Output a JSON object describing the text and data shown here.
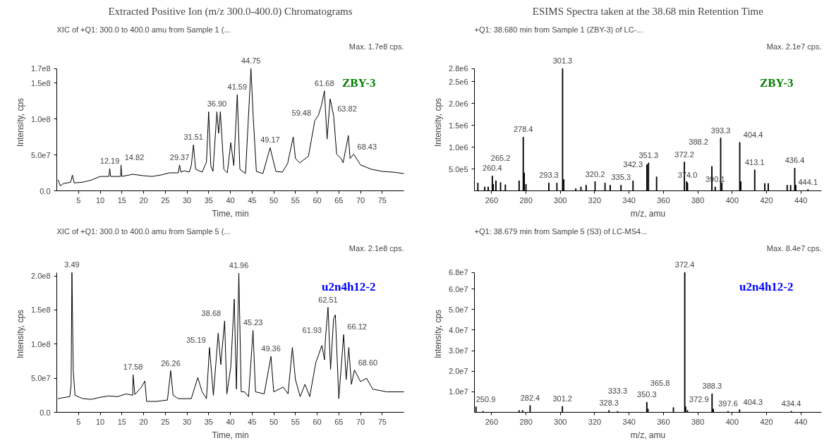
{
  "chart_data": [
    {
      "type": "line",
      "title": "Extracted Positive Ion (m/z 300.0-400.0) Chromatograms",
      "subtitle": "XIC of +Q1: 300.0 to 400.0 amu from Sample 1 (...",
      "xlabel": "Time, min",
      "ylabel": "Intensity, cps",
      "xlim": [
        0,
        80
      ],
      "ylim": [
        0,
        170000000
      ],
      "xticks": [
        5,
        10,
        15,
        20,
        25,
        30,
        35,
        40,
        45,
        50,
        55,
        60,
        65,
        70,
        75
      ],
      "yticks": [
        {
          "value": 0,
          "label": "0.0"
        },
        {
          "value": 50000000,
          "label": "5.0e7"
        },
        {
          "value": 100000000,
          "label": "1.0e8"
        },
        {
          "value": 150000000,
          "label": "1.5e8"
        },
        {
          "value": 170000000,
          "label": "1.7e8"
        }
      ],
      "x": [
        0.3,
        0.8,
        1.5,
        3.2,
        3.6,
        4.0,
        6,
        8,
        10,
        12,
        12.2,
        12.4,
        14.7,
        14.8,
        15,
        17.5,
        20,
        22,
        24,
        26,
        28,
        28.3,
        28.6,
        29.4,
        30.5,
        31.0,
        31.5,
        32,
        33.5,
        34.5,
        35.0,
        35.5,
        36,
        36.9,
        37.3,
        37.7,
        38.5,
        39.3,
        40.1,
        40.8,
        41.6,
        42.2,
        43.5,
        44.75,
        45.3,
        46,
        47.5,
        49.17,
        50.5,
        52,
        53.2,
        54.5,
        55,
        56,
        58,
        59.48,
        60.3,
        61.0,
        61.68,
        62.3,
        63,
        63.82,
        64.5,
        65.5,
        66,
        67.2,
        67.6,
        68.43,
        70,
        72.5,
        75,
        77.5,
        80
      ],
      "series": [
        {
          "color": "#000000",
          "values": [
            15000000,
            7000000,
            10000000,
            12000000,
            22000000,
            11000000,
            12000000,
            15000000,
            20000000,
            20000000,
            31000000,
            20000000,
            20000000,
            36000000,
            20000000,
            23000000,
            21000000,
            20000000,
            22000000,
            25000000,
            25000000,
            36000000,
            26000000,
            28000000,
            26000000,
            35000000,
            64000000,
            30000000,
            26000000,
            40000000,
            110000000,
            35000000,
            27000000,
            110000000,
            80000000,
            110000000,
            30000000,
            25000000,
            67000000,
            35000000,
            134000000,
            30000000,
            24000000,
            170000000,
            100000000,
            27000000,
            24000000,
            60000000,
            27000000,
            26000000,
            38000000,
            75000000,
            45000000,
            39000000,
            48000000,
            98000000,
            105000000,
            119000000,
            139000000,
            72000000,
            128000000,
            104000000,
            51000000,
            45000000,
            39000000,
            77000000,
            45000000,
            51000000,
            36000000,
            30000000,
            27000000,
            26000000,
            24000000
          ]
        }
      ],
      "annotations": [
        "Max. 1.7e8 cps.",
        "ZBY-3",
        {
          "text": "12.19",
          "x": 12.2,
          "y": 31000000
        },
        {
          "text": "14.82",
          "x": 14.8,
          "y": 36000000
        },
        {
          "text": "29.37",
          "x": 28.3,
          "y": 36000000
        },
        {
          "text": "31.51",
          "x": 31.5,
          "y": 64000000
        },
        {
          "text": "36.90",
          "x": 36.9,
          "y": 110000000
        },
        {
          "text": "41.59",
          "x": 41.6,
          "y": 134000000
        },
        {
          "text": "44.75",
          "x": 44.75,
          "y": 170000000
        },
        {
          "text": "49.17",
          "x": 49.17,
          "y": 60000000
        },
        {
          "text": "59.48",
          "x": 59.48,
          "y": 98000000
        },
        {
          "text": "61.68",
          "x": 61.68,
          "y": 139000000
        },
        {
          "text": "63.82",
          "x": 63.82,
          "y": 104000000
        },
        {
          "text": "68.43",
          "x": 68.43,
          "y": 51000000
        }
      ]
    },
    {
      "type": "bar",
      "title": "ESIMS Spectra taken at the 38.68 min Retention Time",
      "subtitle": "+Q1: 38.680 min from Sample 1 (ZBY-3) of LC-...",
      "xlabel": "m/z, amu",
      "ylabel": "Intensity, cps",
      "xlim": [
        250,
        452
      ],
      "ylim": [
        0,
        2800000
      ],
      "xticks": [
        260,
        280,
        300,
        320,
        340,
        360,
        380,
        400,
        420,
        440
      ],
      "yticks": [
        {
          "value": 500000,
          "label": "5.0e5"
        },
        {
          "value": 1000000,
          "label": "1.0e6"
        },
        {
          "value": 1500000,
          "label": "1.5e6"
        },
        {
          "value": 2000000,
          "label": "2.0e6"
        },
        {
          "value": 2500000,
          "label": "2.5e6"
        },
        {
          "value": 2800000,
          "label": "2.8e6"
        }
      ],
      "x": [
        252,
        256,
        258,
        260.4,
        261,
        262.5,
        265.2,
        268,
        276,
        278.4,
        279,
        280,
        293.3,
        298,
        301.3,
        302,
        309,
        312,
        315,
        320.2,
        326,
        329,
        335.3,
        342.3,
        350.4,
        351.3,
        356,
        372.2,
        373.5,
        374.0,
        388.2,
        390.1,
        393.3,
        394,
        404.4,
        405,
        413.1,
        419,
        421,
        432,
        434,
        436.4,
        437,
        444.1
      ],
      "series": [
        {
          "color": "#000000",
          "values": [
            180000,
            90000,
            90000,
            340000,
            150000,
            230000,
            190000,
            140000,
            230000,
            1230000,
            410000,
            150000,
            180000,
            180000,
            2800000,
            260000,
            50000,
            90000,
            130000,
            210000,
            180000,
            130000,
            130000,
            230000,
            600000,
            640000,
            320000,
            660000,
            210000,
            180000,
            560000,
            90000,
            1210000,
            180000,
            1110000,
            210000,
            480000,
            170000,
            170000,
            130000,
            130000,
            520000,
            130000,
            30000
          ]
        }
      ],
      "annotations": [
        "Max. 2.1e7 cps.",
        "ZBY-3",
        {
          "text": "260.4",
          "x": 260.4,
          "y": 340000
        },
        {
          "text": "265.2",
          "x": 265.2,
          "y": 190000
        },
        {
          "text": "278.4",
          "x": 278.4,
          "y": 1230000
        },
        {
          "text": "293.3",
          "x": 293.3,
          "y": 180000
        },
        {
          "text": "301.3",
          "x": 301.3,
          "y": 2800000
        },
        {
          "text": "320.2",
          "x": 320.2,
          "y": 210000
        },
        {
          "text": "335.3",
          "x": 335.3,
          "y": 130000
        },
        {
          "text": "342.3",
          "x": 342.3,
          "y": 230000
        },
        {
          "text": "351.3",
          "x": 351.3,
          "y": 640000
        },
        {
          "text": "372.2",
          "x": 372.2,
          "y": 660000
        },
        {
          "text": "374.0",
          "x": 374.0,
          "y": 180000
        },
        {
          "text": "388.2",
          "x": 388.2,
          "y": 560000
        },
        {
          "text": "390.1",
          "x": 390.1,
          "y": 90000
        },
        {
          "text": "393.3",
          "x": 393.3,
          "y": 1210000
        },
        {
          "text": "404.4",
          "x": 404.4,
          "y": 1110000
        },
        {
          "text": "413.1",
          "x": 413.1,
          "y": 480000
        },
        {
          "text": "436.4",
          "x": 436.4,
          "y": 520000
        },
        {
          "text": "444.1",
          "x": 444.1,
          "y": 30000
        }
      ]
    },
    {
      "type": "line",
      "subtitle": "XIC of +Q1: 300.0 to 400.0 amu from Sample 5 (...",
      "xlabel": "Time, min",
      "ylabel": "Intensity, cps",
      "xlim": [
        0,
        80
      ],
      "ylim": [
        0,
        205000000
      ],
      "xticks": [
        5,
        10,
        15,
        20,
        25,
        30,
        35,
        40,
        45,
        50,
        55,
        60,
        65,
        70,
        75
      ],
      "yticks": [
        {
          "value": 0,
          "label": "0.0"
        },
        {
          "value": 50000000,
          "label": "5.0e7"
        },
        {
          "value": 100000000,
          "label": "1.0e8"
        },
        {
          "value": 150000000,
          "label": "1.5e8"
        },
        {
          "value": 200000000,
          "label": "2.0e8"
        }
      ],
      "x": [
        0.3,
        1,
        3.0,
        3.3,
        3.49,
        3.8,
        4.2,
        6,
        8,
        10,
        12,
        14,
        16,
        17.5,
        17.58,
        18,
        19.5,
        20.3,
        20.7,
        23,
        25.5,
        26.26,
        26.8,
        28,
        31,
        32.5,
        33.5,
        34.5,
        35.19,
        36.1,
        37.2,
        37.8,
        38.68,
        39.2,
        40.1,
        40.9,
        41.4,
        41.96,
        42.5,
        43.3,
        44.2,
        45.23,
        45.8,
        47.8,
        49.36,
        50,
        52.2,
        53.3,
        54.3,
        55,
        56.1,
        57.2,
        58.3,
        59.7,
        61.1,
        61.7,
        61.93,
        62.51,
        63.1,
        63.8,
        64.2,
        65,
        66.12,
        66.7,
        67.3,
        67.9,
        68.6,
        70,
        71.4,
        72.8,
        76.1,
        80
      ],
      "series": [
        {
          "color": "#000000",
          "values": [
            20000000,
            21000000,
            23000000,
            40000000,
            205000000,
            60000000,
            25000000,
            20000000,
            19000000,
            22000000,
            24000000,
            23000000,
            27000000,
            25000000,
            55000000,
            26000000,
            37000000,
            46000000,
            16000000,
            16000000,
            18000000,
            61000000,
            25000000,
            20000000,
            20000000,
            51000000,
            30000000,
            20000000,
            95000000,
            25000000,
            116000000,
            70000000,
            134000000,
            27000000,
            66000000,
            166000000,
            34000000,
            204000000,
            30000000,
            30000000,
            23000000,
            120000000,
            30000000,
            27000000,
            82000000,
            30000000,
            37000000,
            27000000,
            95000000,
            48000000,
            23000000,
            41000000,
            23000000,
            73000000,
            98000000,
            77000000,
            109000000,
            154000000,
            63000000,
            137000000,
            143000000,
            20000000,
            114000000,
            48000000,
            95000000,
            41000000,
            62000000,
            45000000,
            50000000,
            34000000,
            30000000,
            30000000
          ]
        }
      ],
      "annotations": [
        "Max. 2.1e8 cps.",
        "u2n4h12-2",
        {
          "text": "3.49",
          "x": 3.49,
          "y": 205000000
        },
        {
          "text": "17.58",
          "x": 17.58,
          "y": 55000000
        },
        {
          "text": "26.26",
          "x": 26.26,
          "y": 61000000
        },
        {
          "text": "35.19",
          "x": 35.19,
          "y": 95000000
        },
        {
          "text": "38.68",
          "x": 38.68,
          "y": 134000000
        },
        {
          "text": "41.96",
          "x": 41.96,
          "y": 204000000
        },
        {
          "text": "45.23",
          "x": 45.23,
          "y": 120000000
        },
        {
          "text": "49.36",
          "x": 49.36,
          "y": 82000000
        },
        {
          "text": "61.93",
          "x": 61.93,
          "y": 109000000
        },
        {
          "text": "62.51",
          "x": 62.51,
          "y": 154000000
        },
        {
          "text": "66.12",
          "x": 66.12,
          "y": 114000000
        },
        {
          "text": "68.60",
          "x": 68.6,
          "y": 62000000
        }
      ]
    },
    {
      "type": "bar",
      "subtitle": "+Q1: 38.679 min from Sample 5 (S3) of LC-MS4...",
      "xlabel": "m/z, amu",
      "ylabel": "Intensity, cps",
      "xlim": [
        250,
        452
      ],
      "ylim": [
        0,
        68000000
      ],
      "xticks": [
        260,
        280,
        300,
        320,
        340,
        360,
        380,
        400,
        420,
        440
      ],
      "yticks": [
        {
          "value": 10000000,
          "label": "1.0e7"
        },
        {
          "value": 20000000,
          "label": "2.0e7"
        },
        {
          "value": 30000000,
          "label": "3.0e7"
        },
        {
          "value": 40000000,
          "label": "4.0e7"
        },
        {
          "value": 50000000,
          "label": "5.0e7"
        },
        {
          "value": 60000000,
          "label": "6.0e7"
        },
        {
          "value": 68000000,
          "label": "6.8e7"
        }
      ],
      "x": [
        250.9,
        255,
        276,
        278,
        282.4,
        301.2,
        328.3,
        333.3,
        350.3,
        351,
        365.8,
        372.4,
        372.9,
        374,
        388.3,
        389,
        397.6,
        404.3,
        434.4
      ],
      "series": [
        {
          "color": "#000000",
          "values": [
            2700000,
            500000,
            900000,
            900000,
            3300000,
            2900000,
            900000,
            500000,
            4900000,
            1600000,
            2300000,
            68000000,
            2700000,
            900000,
            9000000,
            1600000,
            500000,
            1300000,
            500000
          ]
        }
      ],
      "annotations": [
        "Max. 8.4e7 cps.",
        "u2n4h12-2",
        {
          "text": "250.9",
          "x": 250.9,
          "y": 2700000
        },
        {
          "text": "282.4",
          "x": 282.4,
          "y": 3300000
        },
        {
          "text": "301.2",
          "x": 301.2,
          "y": 2900000
        },
        {
          "text": "328.3",
          "x": 328.3,
          "y": 900000
        },
        {
          "text": "333.3",
          "x": 333.3,
          "y": 500000
        },
        {
          "text": "350.3",
          "x": 350.3,
          "y": 4900000
        },
        {
          "text": "365.8",
          "x": 365.8,
          "y": 2300000
        },
        {
          "text": "372.4",
          "x": 372.4,
          "y": 68000000
        },
        {
          "text": "372.9",
          "x": 372.9,
          "y": 2700000
        },
        {
          "text": "388.3",
          "x": 388.3,
          "y": 9000000
        },
        {
          "text": "397.6",
          "x": 397.6,
          "y": 500000
        },
        {
          "text": "404.3",
          "x": 404.3,
          "y": 1300000
        },
        {
          "text": "434.4",
          "x": 434.4,
          "y": 500000
        }
      ]
    }
  ]
}
